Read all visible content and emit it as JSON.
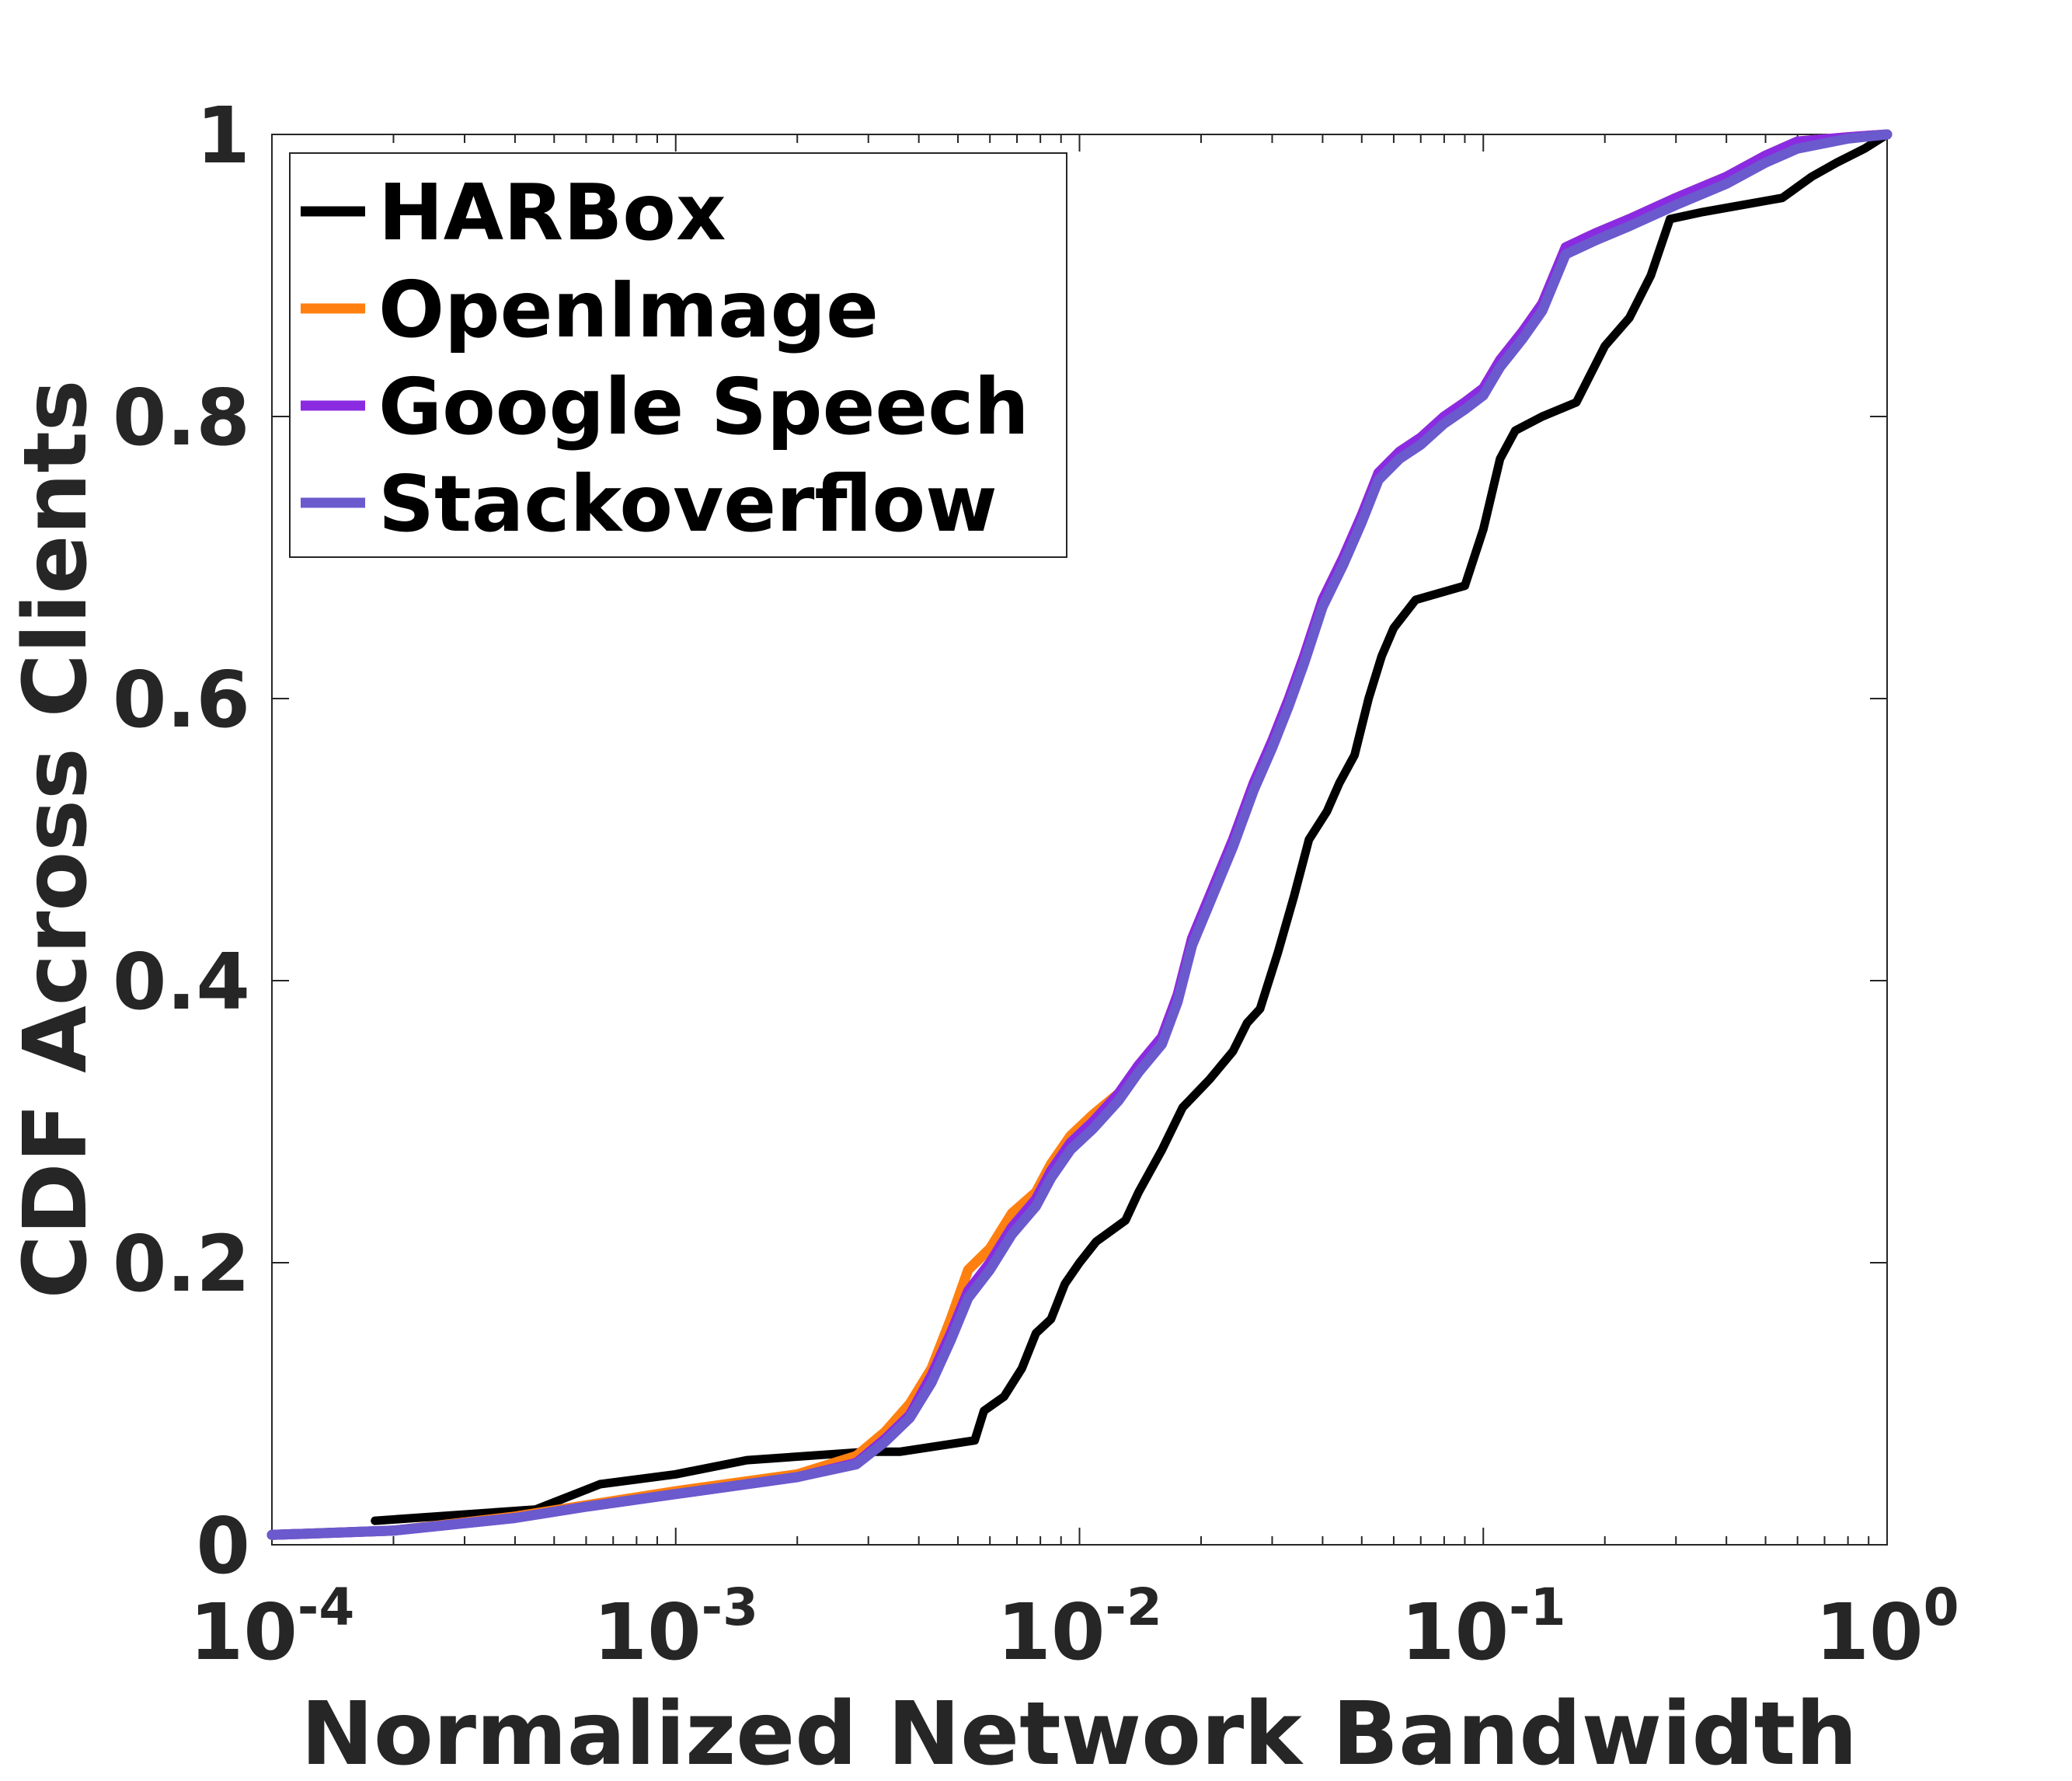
{
  "chart_data": {
    "type": "line",
    "xlabel": "Normalized Network Bandwidth",
    "ylabel": "CDF Across Clients",
    "xscale": "log",
    "xlim": [
      0.0001,
      1
    ],
    "ylim": [
      0,
      1
    ],
    "x_ticks": [
      {
        "value": 0.0001,
        "base": "10",
        "exp": "-4"
      },
      {
        "value": 0.001,
        "base": "10",
        "exp": "-3"
      },
      {
        "value": 0.01,
        "base": "10",
        "exp": "-2"
      },
      {
        "value": 0.1,
        "base": "10",
        "exp": "-1"
      },
      {
        "value": 1,
        "base": "10",
        "exp": "0"
      }
    ],
    "y_ticks": [
      {
        "value": 0,
        "label": "0"
      },
      {
        "value": 0.2,
        "label": "0.2"
      },
      {
        "value": 0.4,
        "label": "0.4"
      },
      {
        "value": 0.6,
        "label": "0.6"
      },
      {
        "value": 0.8,
        "label": "0.8"
      },
      {
        "value": 1,
        "label": "1"
      }
    ],
    "grid": false,
    "legend_position": "top-left",
    "series": [
      {
        "name": "HARBox",
        "color": "#000000",
        "x": [
          0.00018,
          0.00045,
          0.00065,
          0.001,
          0.0015,
          0.003,
          0.0036,
          0.0055,
          0.0058,
          0.0065,
          0.0072,
          0.0078,
          0.0085,
          0.0092,
          0.01,
          0.011,
          0.013,
          0.014,
          0.016,
          0.018,
          0.021,
          0.024,
          0.026,
          0.028,
          0.031,
          0.034,
          0.037,
          0.041,
          0.044,
          0.048,
          0.052,
          0.056,
          0.06,
          0.068,
          0.09,
          0.1,
          0.11,
          0.12,
          0.14,
          0.17,
          0.2,
          0.23,
          0.26,
          0.29,
          0.35,
          0.55,
          0.65,
          0.75,
          0.88,
          1.0
        ],
        "y": [
          0.017,
          0.025,
          0.043,
          0.05,
          0.06,
          0.066,
          0.066,
          0.074,
          0.095,
          0.105,
          0.125,
          0.15,
          0.16,
          0.185,
          0.2,
          0.215,
          0.23,
          0.25,
          0.28,
          0.31,
          0.33,
          0.35,
          0.37,
          0.38,
          0.42,
          0.46,
          0.5,
          0.52,
          0.54,
          0.56,
          0.6,
          0.63,
          0.65,
          0.67,
          0.68,
          0.72,
          0.77,
          0.79,
          0.8,
          0.81,
          0.85,
          0.87,
          0.9,
          0.94,
          0.945,
          0.955,
          0.97,
          0.98,
          0.99,
          1.0
        ]
      },
      {
        "name": "OpenImage",
        "color": "#ff8010",
        "x": [
          0.0001,
          0.0002,
          0.0004,
          0.0006,
          0.001,
          0.002,
          0.0028,
          0.0033,
          0.0038,
          0.0043,
          0.0048,
          0.0053,
          0.006,
          0.0068,
          0.0078,
          0.0085,
          0.0095,
          0.0108,
          0.0125,
          0.014,
          0.016,
          0.0175,
          0.019,
          0.021,
          0.024,
          0.027,
          0.03,
          0.033,
          0.036,
          0.04,
          0.045,
          0.05,
          0.055,
          0.062,
          0.07,
          0.08,
          0.09,
          0.1,
          0.11,
          0.125,
          0.14,
          0.16,
          0.19,
          0.23,
          0.3,
          0.4,
          0.5,
          0.6,
          0.8,
          1.0
        ],
        "y": [
          0.007,
          0.01,
          0.02,
          0.028,
          0.038,
          0.05,
          0.063,
          0.08,
          0.1,
          0.125,
          0.16,
          0.195,
          0.21,
          0.235,
          0.25,
          0.27,
          0.29,
          0.305,
          0.32,
          0.34,
          0.36,
          0.39,
          0.43,
          0.46,
          0.5,
          0.54,
          0.57,
          0.6,
          0.63,
          0.67,
          0.7,
          0.73,
          0.76,
          0.775,
          0.785,
          0.8,
          0.81,
          0.82,
          0.84,
          0.86,
          0.88,
          0.92,
          0.93,
          0.94,
          0.955,
          0.97,
          0.985,
          0.995,
          0.998,
          1.0
        ]
      },
      {
        "name": "Google Speech",
        "color": "#8a2be2",
        "x": [
          0.0001,
          0.0002,
          0.0004,
          0.0006,
          0.001,
          0.002,
          0.0028,
          0.0033,
          0.0038,
          0.0043,
          0.0048,
          0.0053,
          0.006,
          0.0068,
          0.0078,
          0.0085,
          0.0095,
          0.0108,
          0.0125,
          0.014,
          0.016,
          0.0175,
          0.019,
          0.021,
          0.024,
          0.027,
          0.03,
          0.033,
          0.036,
          0.04,
          0.045,
          0.05,
          0.055,
          0.062,
          0.07,
          0.08,
          0.09,
          0.1,
          0.11,
          0.125,
          0.14,
          0.16,
          0.19,
          0.23,
          0.3,
          0.4,
          0.5,
          0.6,
          0.8,
          1.0
        ],
        "y": [
          0.007,
          0.01,
          0.019,
          0.027,
          0.036,
          0.048,
          0.058,
          0.075,
          0.092,
          0.12,
          0.15,
          0.18,
          0.2,
          0.225,
          0.245,
          0.265,
          0.285,
          0.3,
          0.32,
          0.34,
          0.36,
          0.39,
          0.43,
          0.46,
          0.5,
          0.54,
          0.57,
          0.6,
          0.63,
          0.67,
          0.7,
          0.73,
          0.76,
          0.775,
          0.785,
          0.8,
          0.81,
          0.82,
          0.84,
          0.86,
          0.88,
          0.92,
          0.93,
          0.94,
          0.955,
          0.97,
          0.985,
          0.995,
          0.998,
          1.0
        ]
      },
      {
        "name": "Stackoverflow",
        "color": "#6a5acd",
        "x": [
          0.0001,
          0.0002,
          0.0004,
          0.0006,
          0.001,
          0.002,
          0.0028,
          0.0033,
          0.0038,
          0.0043,
          0.0048,
          0.0053,
          0.006,
          0.0068,
          0.0078,
          0.0085,
          0.0095,
          0.0108,
          0.0125,
          0.014,
          0.016,
          0.0175,
          0.019,
          0.021,
          0.024,
          0.027,
          0.03,
          0.033,
          0.036,
          0.04,
          0.045,
          0.05,
          0.055,
          0.062,
          0.07,
          0.08,
          0.09,
          0.1,
          0.11,
          0.125,
          0.14,
          0.16,
          0.19,
          0.23,
          0.3,
          0.4,
          0.5,
          0.6,
          0.8,
          1.0
        ],
        "y": [
          0.007,
          0.01,
          0.019,
          0.027,
          0.036,
          0.048,
          0.057,
          0.073,
          0.09,
          0.115,
          0.145,
          0.175,
          0.195,
          0.22,
          0.24,
          0.26,
          0.28,
          0.295,
          0.315,
          0.335,
          0.355,
          0.385,
          0.425,
          0.455,
          0.495,
          0.535,
          0.565,
          0.595,
          0.625,
          0.665,
          0.695,
          0.725,
          0.755,
          0.77,
          0.78,
          0.795,
          0.805,
          0.815,
          0.835,
          0.855,
          0.875,
          0.915,
          0.925,
          0.935,
          0.95,
          0.965,
          0.98,
          0.99,
          0.997,
          1.0
        ]
      }
    ]
  }
}
